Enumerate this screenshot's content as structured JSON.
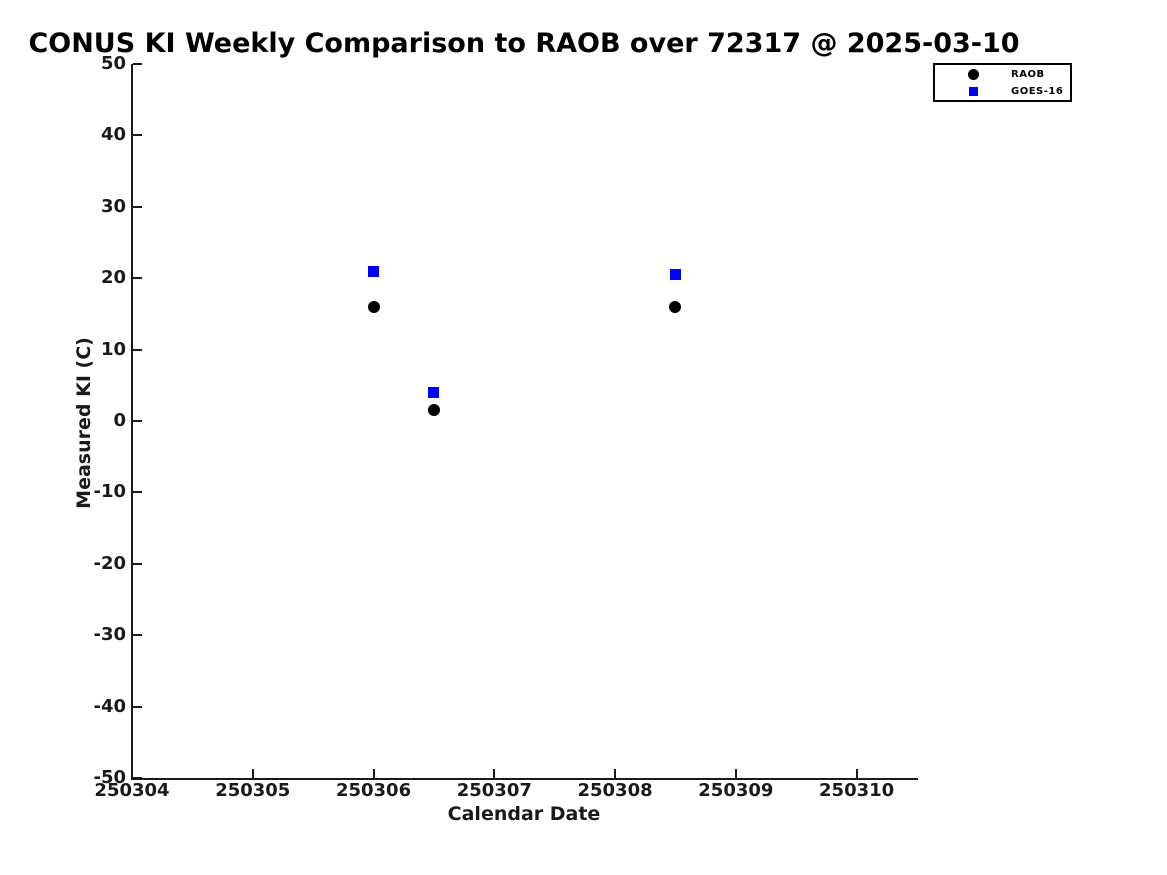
{
  "chart_data": {
    "type": "scatter",
    "title": "CONUS KI Weekly Comparison to RAOB over 72317 @ 2025-03-10",
    "xlabel": "Calendar Date",
    "ylabel": "Measured KI (C)",
    "xlim": [
      250304,
      250310.5
    ],
    "ylim": [
      -50,
      50
    ],
    "xticks": [
      250304,
      250305,
      250306,
      250307,
      250308,
      250309,
      250310
    ],
    "yticks": [
      50,
      40,
      30,
      20,
      10,
      0,
      -10,
      -20,
      -30,
      -40,
      -50
    ],
    "grid": false,
    "legend": {
      "position": "top-right",
      "entries": [
        "RAOB",
        "GOES-16"
      ]
    },
    "series": [
      {
        "name": "RAOB",
        "marker": "circle",
        "color": "#000000",
        "x": [
          250306,
          250306.5,
          250308.5
        ],
        "y": [
          16,
          1.5,
          16
        ]
      },
      {
        "name": "GOES-16",
        "marker": "square",
        "color": "#0000ff",
        "x": [
          250306,
          250306.5,
          250308.5
        ],
        "y": [
          21,
          4,
          20.5
        ]
      }
    ]
  }
}
